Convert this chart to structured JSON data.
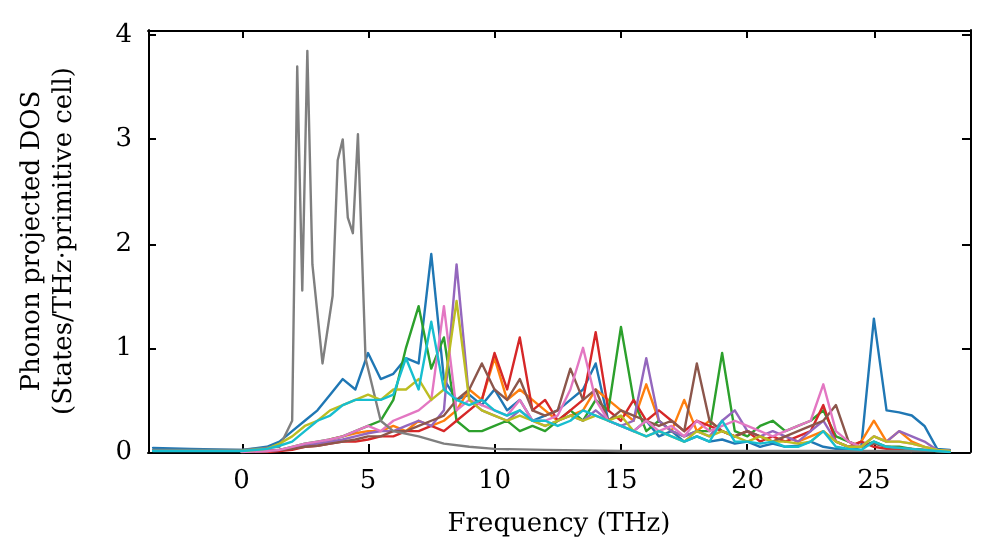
{
  "chart_data": {
    "type": "line",
    "xlabel": "Frequency (THz)",
    "ylabel": "Phonon projected DOS\n(States/THz·primitive cell)",
    "x": [
      -3.5,
      -2,
      0,
      1,
      1.5,
      2,
      2.5,
      3,
      3.5,
      4,
      4.5,
      5,
      5.5,
      6,
      6.5,
      7,
      7.5,
      8,
      8.5,
      9,
      9.5,
      10,
      10.5,
      11,
      11.5,
      12,
      12.5,
      13,
      13.5,
      14,
      14.5,
      15,
      15.5,
      16,
      16.5,
      17,
      17.5,
      18,
      18.5,
      19,
      19.5,
      20,
      20.5,
      21,
      21.5,
      22,
      22.5,
      23,
      23.5,
      24,
      24.5,
      25,
      25.5,
      26,
      26.5,
      27,
      27.5,
      28
    ],
    "series": [
      {
        "color": "#1f77b4",
        "values": [
          0.04,
          0.03,
          0.02,
          0.05,
          0.1,
          0.2,
          0.3,
          0.4,
          0.55,
          0.7,
          0.6,
          0.95,
          0.7,
          0.75,
          0.9,
          0.85,
          1.9,
          0.7,
          0.5,
          0.55,
          0.45,
          0.6,
          0.4,
          0.5,
          0.3,
          0.35,
          0.4,
          0.5,
          0.6,
          0.85,
          0.3,
          0.25,
          0.2,
          0.3,
          0.15,
          0.2,
          0.1,
          0.15,
          0.1,
          0.12,
          0.08,
          0.1,
          0.05,
          0.08,
          0.05,
          0.06,
          0.1,
          0.05,
          0.03,
          0.02,
          0.05,
          1.28,
          0.4,
          0.38,
          0.35,
          0.25,
          0.03,
          0.02
        ]
      },
      {
        "color": "#ff7f0e",
        "values": [
          null,
          null,
          null,
          null,
          null,
          null,
          null,
          null,
          0.12,
          0.15,
          0.18,
          0.2,
          0.2,
          0.25,
          0.2,
          0.3,
          0.25,
          0.3,
          0.4,
          0.6,
          0.5,
          0.9,
          0.5,
          0.6,
          0.5,
          0.4,
          0.3,
          0.35,
          0.4,
          0.6,
          0.5,
          0.4,
          0.3,
          0.65,
          0.3,
          0.2,
          0.5,
          0.2,
          0.3,
          0.2,
          0.15,
          0.2,
          0.15,
          0.1,
          0.15,
          0.1,
          0.15,
          0.2,
          0.1,
          0.05,
          0.1,
          0.3,
          0.1,
          0.2,
          0.1,
          0.05,
          0.02,
          0.01
        ]
      },
      {
        "color": "#2ca02c",
        "values": [
          null,
          null,
          0,
          0.01,
          0.02,
          0.05,
          0.08,
          0.1,
          0.12,
          0.15,
          0.2,
          0.25,
          0.3,
          0.5,
          1.0,
          1.4,
          0.8,
          1.1,
          0.3,
          0.2,
          0.2,
          0.25,
          0.3,
          0.2,
          0.25,
          0.2,
          0.3,
          0.4,
          0.3,
          0.5,
          0.4,
          1.2,
          0.5,
          0.2,
          0.3,
          0.2,
          0.15,
          0.2,
          0.2,
          0.95,
          0.2,
          0.15,
          0.25,
          0.3,
          0.2,
          0.25,
          0.3,
          0.4,
          0.15,
          0.1,
          0.05,
          0.1,
          0.05,
          0.05,
          0.03,
          0.02,
          0.01,
          0.01
        ]
      },
      {
        "color": "#d62728",
        "values": [
          null,
          null,
          0,
          0,
          0.01,
          0.02,
          0.05,
          0.06,
          0.08,
          0.1,
          0.1,
          0.12,
          0.15,
          0.15,
          0.2,
          0.2,
          0.25,
          0.2,
          0.3,
          0.4,
          0.5,
          0.95,
          0.6,
          1.1,
          0.4,
          0.5,
          0.3,
          0.4,
          0.5,
          1.15,
          0.4,
          0.3,
          0.5,
          0.3,
          0.4,
          0.3,
          0.2,
          0.3,
          0.25,
          0.2,
          0.15,
          0.2,
          0.1,
          0.15,
          0.1,
          0.15,
          0.2,
          0.45,
          0.1,
          0.05,
          0.1,
          0.05,
          0.03,
          0.02,
          0.01,
          null,
          null,
          null
        ]
      },
      {
        "color": "#9467bd",
        "values": [
          null,
          null,
          0,
          0.01,
          0.02,
          0.04,
          0.06,
          0.08,
          0.1,
          0.12,
          0.15,
          0.18,
          0.2,
          0.2,
          0.25,
          0.3,
          0.25,
          0.4,
          1.8,
          0.5,
          0.4,
          0.35,
          0.3,
          0.4,
          0.3,
          0.25,
          0.3,
          0.35,
          0.3,
          0.4,
          0.3,
          0.25,
          0.3,
          0.9,
          0.3,
          0.2,
          0.15,
          0.2,
          0.15,
          0.3,
          0.4,
          0.2,
          0.15,
          0.2,
          0.15,
          0.1,
          0.2,
          0.3,
          0.1,
          0.05,
          0.05,
          0.15,
          0.1,
          0.2,
          0.15,
          0.1,
          0.02,
          0.01
        ]
      },
      {
        "color": "#8c564b",
        "values": [
          null,
          null,
          0,
          0.01,
          0.02,
          0.03,
          0.05,
          0.06,
          0.08,
          0.1,
          0.12,
          0.15,
          0.15,
          0.2,
          0.2,
          0.25,
          0.3,
          0.35,
          0.5,
          0.6,
          0.85,
          0.6,
          0.5,
          0.7,
          0.4,
          0.35,
          0.4,
          0.8,
          0.5,
          0.6,
          0.3,
          0.4,
          0.35,
          0.3,
          0.25,
          0.3,
          0.2,
          0.85,
          0.3,
          0.2,
          0.15,
          0.2,
          0.15,
          0.1,
          0.15,
          0.2,
          0.25,
          0.3,
          0.45,
          0.1,
          0.05,
          0.08,
          0.05,
          0.04,
          0.03,
          0.02,
          0.01,
          0
        ]
      },
      {
        "color": "#e377c2",
        "values": [
          null,
          null,
          0,
          0.01,
          0.02,
          0.05,
          0.08,
          0.1,
          0.12,
          0.15,
          0.2,
          0.25,
          0.2,
          0.3,
          0.35,
          0.4,
          0.5,
          1.4,
          0.4,
          0.5,
          0.45,
          0.4,
          0.35,
          0.5,
          0.3,
          0.3,
          0.35,
          0.6,
          1.0,
          0.5,
          0.3,
          0.25,
          0.2,
          0.3,
          0.2,
          0.25,
          0.15,
          0.3,
          0.2,
          0.25,
          0.3,
          0.25,
          0.2,
          0.15,
          0.2,
          0.25,
          0.3,
          0.65,
          0.2,
          0.1,
          0.05,
          0.15,
          0.1,
          0.1,
          0.08,
          0.05,
          0.02,
          0.01
        ]
      },
      {
        "color": "#7f7f7f",
        "x": [
          -3.5,
          0,
          1.5,
          2,
          2.2,
          2.4,
          2.6,
          2.8,
          3.2,
          3.6,
          3.8,
          4,
          4.2,
          4.4,
          4.6,
          4.9,
          5.5,
          6,
          7,
          8,
          9,
          10,
          12,
          15,
          20,
          25,
          28
        ],
        "values": [
          0.02,
          0.02,
          0.05,
          0.3,
          3.7,
          1.55,
          3.85,
          1.8,
          0.85,
          1.5,
          2.8,
          3.0,
          2.25,
          2.1,
          3.05,
          0.9,
          0.3,
          0.2,
          0.15,
          0.08,
          0.05,
          0.03,
          0.02,
          0.01,
          0.01,
          0.01,
          0.01
        ]
      },
      {
        "color": "#bcbd22",
        "values": [
          null,
          null,
          0.01,
          0.03,
          0.08,
          0.15,
          0.25,
          0.3,
          0.4,
          0.45,
          0.5,
          0.55,
          0.5,
          0.6,
          0.6,
          0.7,
          0.5,
          0.6,
          1.45,
          0.5,
          0.4,
          0.35,
          0.3,
          0.35,
          0.3,
          0.25,
          0.3,
          0.35,
          0.3,
          0.35,
          0.3,
          0.35,
          0.2,
          0.15,
          0.2,
          0.15,
          0.1,
          0.2,
          0.15,
          0.2,
          0.15,
          0.1,
          0.15,
          0.1,
          0.1,
          0.08,
          0.1,
          0.2,
          0.1,
          0.05,
          0.05,
          0.15,
          0.1,
          0.1,
          0.08,
          0.05,
          0.02,
          0.01
        ]
      },
      {
        "color": "#17becf",
        "values": [
          0.01,
          0.01,
          0.01,
          0.03,
          0.06,
          0.1,
          0.2,
          0.3,
          0.35,
          0.45,
          0.5,
          0.5,
          0.5,
          0.55,
          0.9,
          0.6,
          1.25,
          0.6,
          0.5,
          0.45,
          0.5,
          0.4,
          0.35,
          0.4,
          0.3,
          0.3,
          0.25,
          0.3,
          0.4,
          0.35,
          0.3,
          0.25,
          0.2,
          0.15,
          0.2,
          0.15,
          0.1,
          0.15,
          0.1,
          0.3,
          0.1,
          0.1,
          0.08,
          0.1,
          0.05,
          0.05,
          0.1,
          0.2,
          0.05,
          0.03,
          0.02,
          0.1,
          0.05,
          0.04,
          0.03,
          0.02,
          0.01,
          0
        ]
      }
    ],
    "xlim": [
      -3.7,
      28.8
    ],
    "xticks": [
      0,
      5,
      10,
      15,
      20,
      25
    ],
    "ylim": [
      0,
      4.05
    ],
    "yticks": [
      0,
      1,
      2,
      3,
      4
    ]
  }
}
